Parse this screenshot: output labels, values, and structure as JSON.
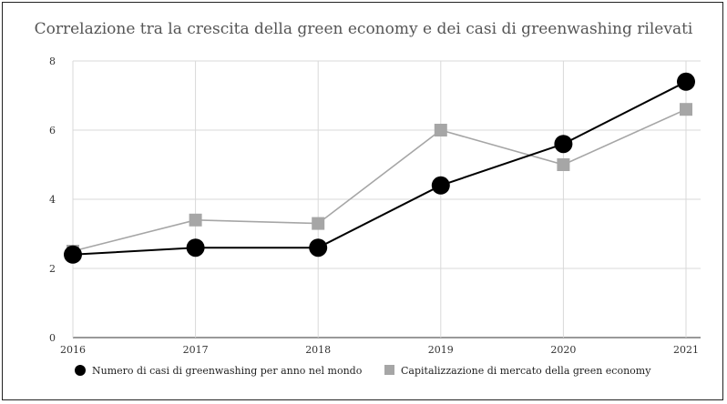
{
  "chart_data": {
    "type": "line",
    "title": "Correlazione tra la crescita della green economy e dei casi di greenwashing rilevati",
    "categories": [
      "2016",
      "2017",
      "2018",
      "2019",
      "2020",
      "2021"
    ],
    "y_ticks": [
      "0",
      "2",
      "4",
      "6",
      "8"
    ],
    "ylim": [
      0,
      8
    ],
    "grid": true,
    "legend_position": "bottom",
    "series": [
      {
        "name": "Numero di casi di greenwashing per anno nel mondo",
        "values": [
          2.4,
          2.6,
          2.6,
          4.4,
          5.6,
          7.4
        ],
        "color": "#000000",
        "marker": "circle"
      },
      {
        "name": "Capitalizzazione di mercato della green economy",
        "values": [
          2.5,
          3.4,
          3.3,
          6.0,
          5.0,
          6.6
        ],
        "color": "#a6a6a6",
        "marker": "square"
      }
    ]
  }
}
